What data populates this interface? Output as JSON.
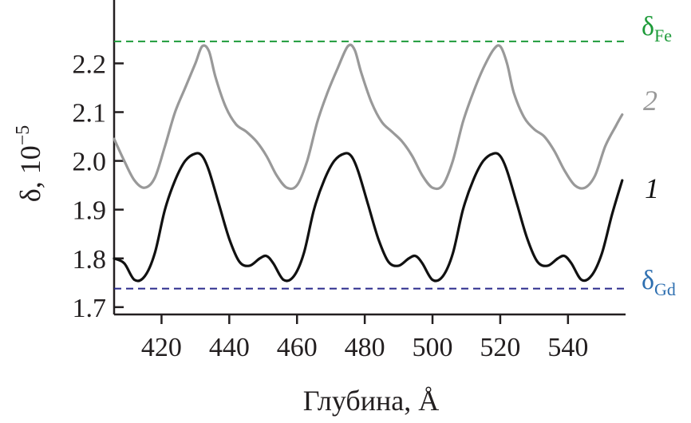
{
  "chart_data": {
    "type": "line",
    "xlabel": "Глубина, Å",
    "ylabel_main": "δ, 10",
    "ylabel_exp": "−5",
    "xlim": [
      406,
      557
    ],
    "ylim": [
      1.685,
      2.33
    ],
    "x_ticks": [
      420,
      440,
      460,
      480,
      500,
      520,
      540
    ],
    "y_ticks": [
      1.7,
      1.8,
      1.9,
      2.0,
      2.1,
      2.2
    ],
    "y_tick_labels": [
      "1.7",
      "1.8",
      "1.9",
      "2.0",
      "2.1",
      "2.2"
    ],
    "x_tick_labels": [
      "420",
      "440",
      "460",
      "480",
      "500",
      "520",
      "540"
    ],
    "reference_lines": [
      {
        "name": "Fe",
        "symbol": "δ",
        "sub": "Fe",
        "y": 2.245,
        "color": "#1e9b3a"
      },
      {
        "name": "Gd",
        "symbol": "δ",
        "sub": "Gd",
        "y": 1.738,
        "color": "#2a2a8c"
      }
    ],
    "series": [
      {
        "label": "1",
        "color": "#111111",
        "x": [
          406,
          409,
          412,
          415,
          418,
          421,
          424,
          427,
          430,
          432,
          434,
          437,
          440,
          443,
          446,
          449,
          451,
          453,
          456,
          459,
          462,
          465,
          468,
          471,
          474,
          476,
          478,
          481,
          484,
          487,
          490,
          493,
          495,
          497,
          500,
          503,
          506,
          509,
          512,
          515,
          518,
          520,
          522,
          525,
          528,
          531,
          534,
          537,
          539,
          541,
          544,
          547,
          550,
          553,
          556
        ],
        "y": [
          1.8,
          1.79,
          1.756,
          1.763,
          1.81,
          1.9,
          1.96,
          2.0,
          2.015,
          2.01,
          1.98,
          1.91,
          1.84,
          1.793,
          1.785,
          1.8,
          1.805,
          1.79,
          1.756,
          1.763,
          1.81,
          1.9,
          1.96,
          2.0,
          2.015,
          2.01,
          1.98,
          1.91,
          1.84,
          1.793,
          1.785,
          1.8,
          1.805,
          1.79,
          1.756,
          1.763,
          1.81,
          1.9,
          1.96,
          2.0,
          2.015,
          2.01,
          1.98,
          1.91,
          1.84,
          1.793,
          1.785,
          1.8,
          1.805,
          1.79,
          1.756,
          1.765,
          1.81,
          1.89,
          1.96
        ]
      },
      {
        "label": "2",
        "color": "#999999",
        "x": [
          406,
          409,
          412,
          415,
          418,
          421,
          424,
          427,
          430,
          432,
          434,
          436,
          439,
          442,
          445,
          448,
          451,
          454,
          457,
          460,
          463,
          466,
          469,
          472,
          475,
          477,
          479,
          482,
          485,
          488,
          491,
          494,
          497,
          500,
          503,
          506,
          509,
          512,
          515,
          518,
          520,
          522,
          524,
          527,
          530,
          533,
          536,
          539,
          542,
          545,
          548,
          551,
          554,
          556
        ],
        "y": [
          2.045,
          2.0,
          1.96,
          1.945,
          1.965,
          2.03,
          2.1,
          2.15,
          2.2,
          2.235,
          2.225,
          2.17,
          2.11,
          2.075,
          2.06,
          2.04,
          2.01,
          1.97,
          1.945,
          1.95,
          2.0,
          2.08,
          2.14,
          2.19,
          2.235,
          2.228,
          2.18,
          2.12,
          2.08,
          2.06,
          2.04,
          2.01,
          1.97,
          1.945,
          1.95,
          2.0,
          2.08,
          2.14,
          2.19,
          2.228,
          2.235,
          2.2,
          2.14,
          2.09,
          2.065,
          2.05,
          2.02,
          1.98,
          1.95,
          1.945,
          1.97,
          2.03,
          2.07,
          2.095
        ]
      }
    ]
  }
}
